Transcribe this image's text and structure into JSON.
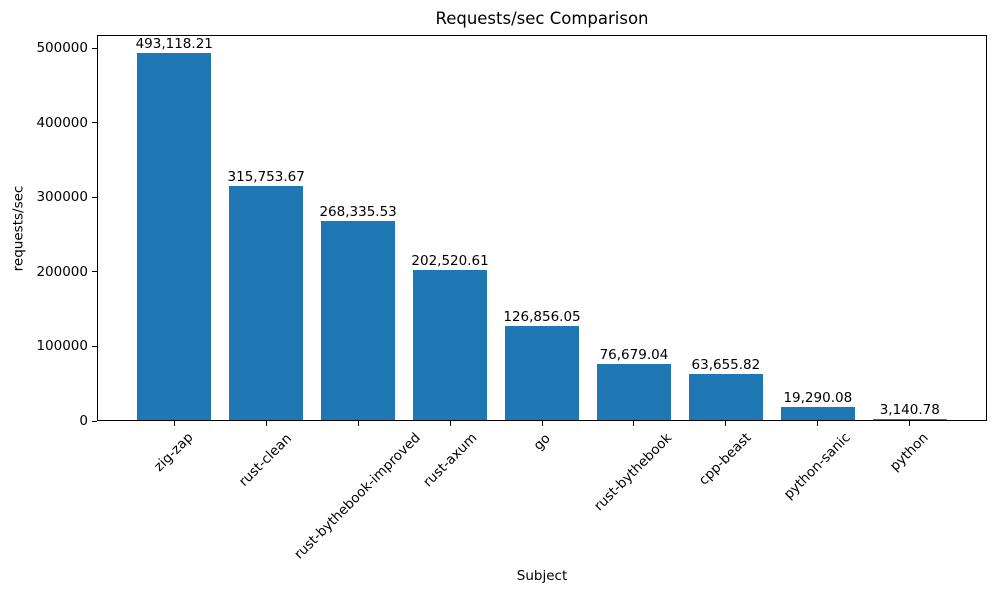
{
  "chart_data": {
    "type": "bar",
    "title": "Requests/sec Comparison",
    "xlabel": "Subject",
    "ylabel": "requests/sec",
    "categories": [
      "zig-zap",
      "rust-clean",
      "rust-bythebook-improved",
      "rust-axum",
      "go",
      "rust-bythebook",
      "cpp-beast",
      "python-sanic",
      "python"
    ],
    "values": [
      493118.21,
      315753.67,
      268335.53,
      202520.61,
      126856.05,
      76679.04,
      63655.82,
      19290.08,
      3140.78
    ],
    "bar_value_labels": [
      "493,118.21",
      "315,753.67",
      "268,335.53",
      "202,520.61",
      "126,856.05",
      "76,679.04",
      "63,655.82",
      "19,290.08",
      "3,140.78"
    ],
    "yticks": [
      0,
      100000,
      200000,
      300000,
      400000,
      500000
    ],
    "ytick_labels": [
      "0",
      "100000",
      "200000",
      "300000",
      "400000",
      "500000"
    ],
    "ylim": [
      0,
      517774
    ],
    "bar_width_fraction": 0.8,
    "x_margin_fraction": 0.05,
    "x_tick_rotation_deg": 45,
    "grid": false,
    "legend": null,
    "colors": {
      "bar": "#1f77b4",
      "text": "#000000",
      "spine": "#000000",
      "background": "#ffffff"
    }
  }
}
